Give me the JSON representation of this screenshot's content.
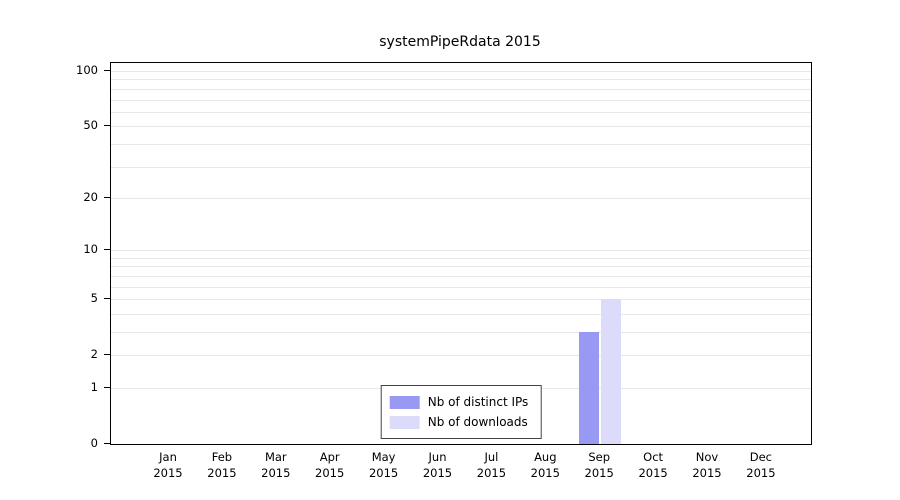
{
  "chart_data": {
    "type": "bar",
    "title": "systemPipeRdata 2015",
    "categories": [
      "Jan",
      "Feb",
      "Mar",
      "Apr",
      "May",
      "Jun",
      "Jul",
      "Aug",
      "Sep",
      "Oct",
      "Nov",
      "Dec"
    ],
    "year_label": "2015",
    "series": [
      {
        "name": "Nb of distinct IPs",
        "color": "#9999f3",
        "values": [
          0,
          0,
          0,
          0,
          0,
          0,
          0,
          0,
          3,
          0,
          0,
          0
        ]
      },
      {
        "name": "Nb of downloads",
        "color": "#dcdcfa",
        "values": [
          0,
          0,
          0,
          0,
          0,
          0,
          0,
          0,
          5,
          0,
          0,
          0
        ]
      }
    ],
    "y_scale": "log1p",
    "ylim": [
      0,
      100
    ],
    "y_ticks": [
      0,
      1,
      2,
      5,
      10,
      20,
      50,
      100
    ],
    "y_minor_gridlines": [
      1,
      2,
      3,
      4,
      5,
      6,
      7,
      8,
      9,
      10,
      20,
      30,
      40,
      50,
      60,
      70,
      80,
      90,
      100
    ],
    "grid": true,
    "legend_position": "bottom-center"
  }
}
